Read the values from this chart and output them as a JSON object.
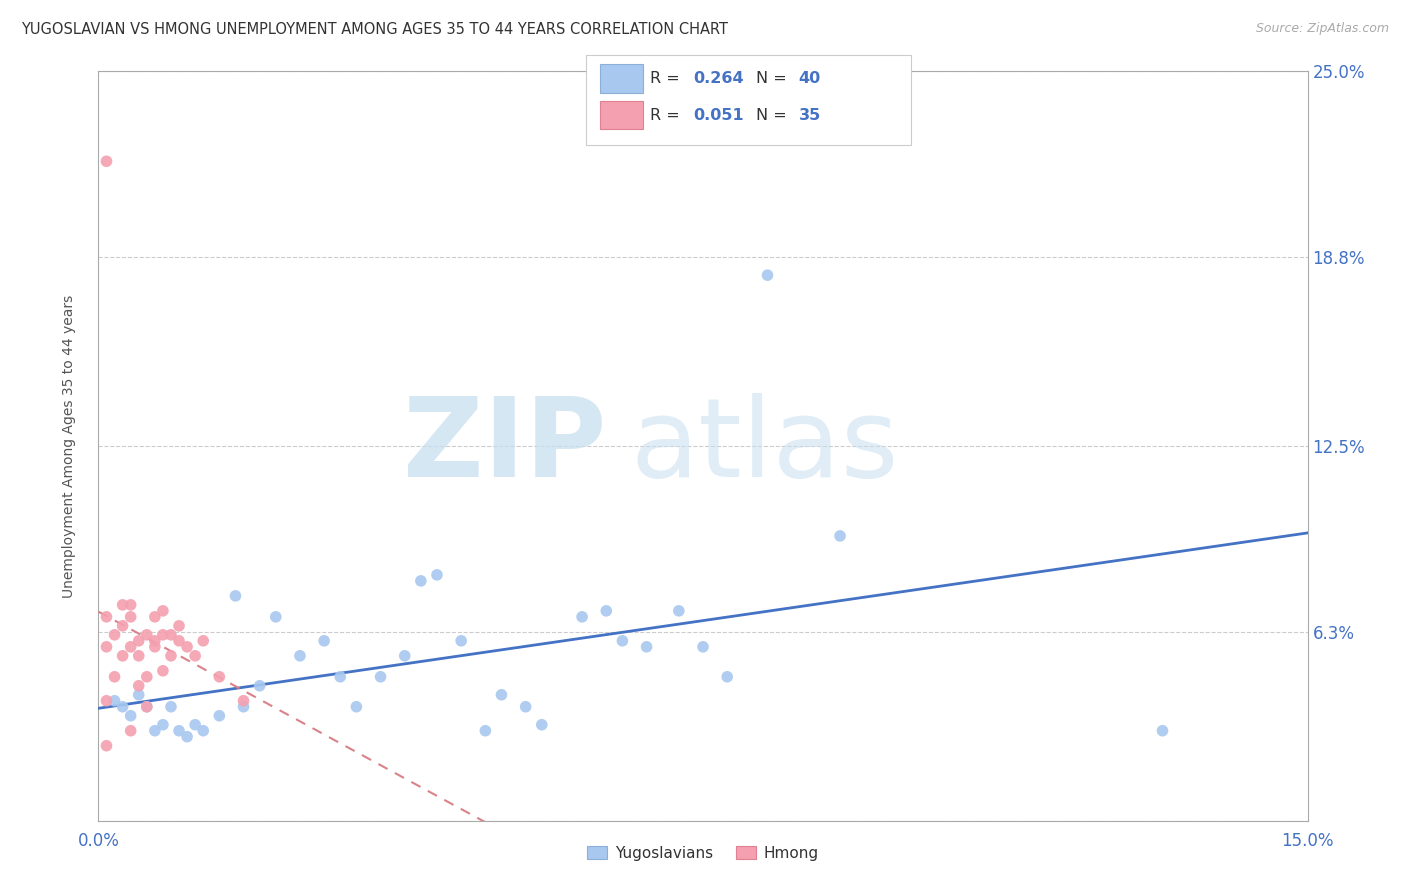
{
  "title": "YUGOSLAVIAN VS HMONG UNEMPLOYMENT AMONG AGES 35 TO 44 YEARS CORRELATION CHART",
  "source": "Source: ZipAtlas.com",
  "ylabel": "Unemployment Among Ages 35 to 44 years",
  "xlim": [
    0,
    0.15
  ],
  "ylim": [
    0,
    0.25
  ],
  "R_yugo": 0.264,
  "N_yugo": 40,
  "R_hmong": 0.051,
  "N_hmong": 35,
  "yugo_color": "#a8c8f0",
  "hmong_color": "#f4a0b0",
  "yugo_line_color": "#4472c4",
  "hmong_line_color": "#d9828a",
  "yugo_x": [
    0.002,
    0.003,
    0.004,
    0.005,
    0.006,
    0.007,
    0.008,
    0.009,
    0.01,
    0.011,
    0.012,
    0.013,
    0.015,
    0.017,
    0.018,
    0.02,
    0.022,
    0.025,
    0.028,
    0.03,
    0.032,
    0.035,
    0.038,
    0.04,
    0.042,
    0.045,
    0.048,
    0.05,
    0.053,
    0.055,
    0.06,
    0.063,
    0.065,
    0.068,
    0.072,
    0.075,
    0.078,
    0.083,
    0.092,
    0.132
  ],
  "yugo_y": [
    0.04,
    0.038,
    0.035,
    0.042,
    0.038,
    0.03,
    0.032,
    0.038,
    0.03,
    0.028,
    0.032,
    0.03,
    0.035,
    0.075,
    0.038,
    0.045,
    0.068,
    0.055,
    0.06,
    0.048,
    0.038,
    0.048,
    0.055,
    0.08,
    0.082,
    0.06,
    0.03,
    0.042,
    0.038,
    0.032,
    0.068,
    0.07,
    0.06,
    0.058,
    0.07,
    0.058,
    0.048,
    0.182,
    0.095,
    0.03
  ],
  "hmong_x": [
    0.001,
    0.001,
    0.001,
    0.002,
    0.002,
    0.003,
    0.003,
    0.003,
    0.004,
    0.004,
    0.004,
    0.004,
    0.005,
    0.005,
    0.005,
    0.006,
    0.006,
    0.006,
    0.007,
    0.007,
    0.007,
    0.008,
    0.008,
    0.008,
    0.009,
    0.009,
    0.01,
    0.01,
    0.011,
    0.012,
    0.013,
    0.015,
    0.018,
    0.001,
    0.001
  ],
  "hmong_y": [
    0.04,
    0.058,
    0.068,
    0.048,
    0.062,
    0.055,
    0.065,
    0.072,
    0.058,
    0.068,
    0.072,
    0.03,
    0.045,
    0.055,
    0.06,
    0.048,
    0.062,
    0.038,
    0.06,
    0.068,
    0.058,
    0.062,
    0.07,
    0.05,
    0.055,
    0.062,
    0.06,
    0.065,
    0.058,
    0.055,
    0.06,
    0.048,
    0.04,
    0.025,
    0.22
  ]
}
